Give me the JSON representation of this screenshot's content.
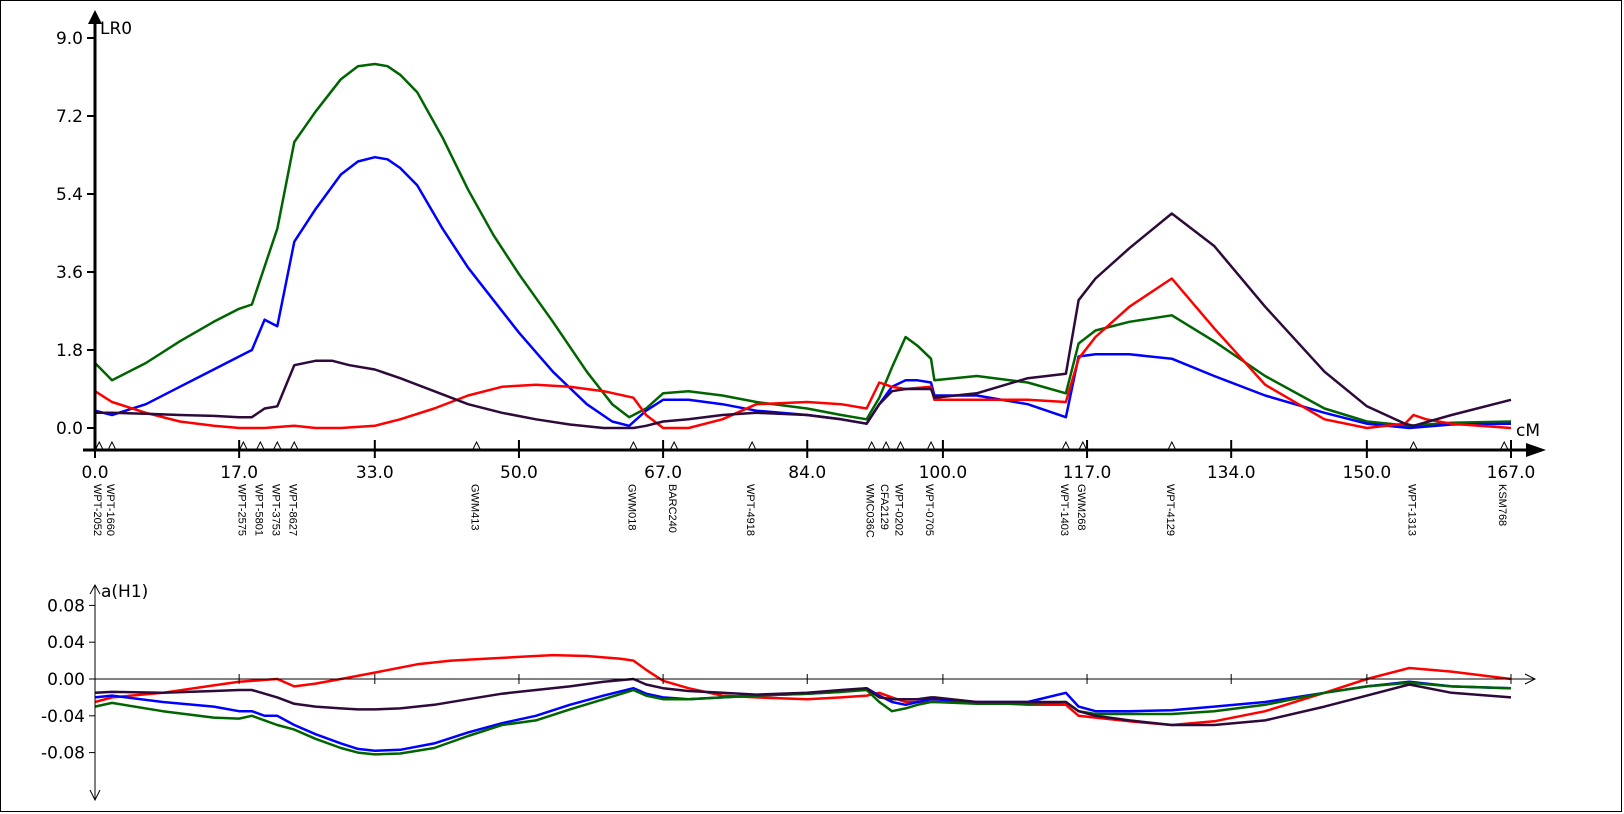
{
  "chart_data": [
    {
      "type": "line",
      "ylabel": "LR0",
      "xlabel": "cM",
      "xlim": [
        0,
        167
      ],
      "ylim": [
        0,
        9
      ],
      "x_ticks": [
        "0.0",
        "17.0",
        "33.0",
        "50.0",
        "67.0",
        "84.0",
        "100.0",
        "117.0",
        "134.0",
        "150.0",
        "167.0"
      ],
      "y_ticks": [
        "0.0",
        "1.8",
        "3.6",
        "5.4",
        "7.2",
        "9.0"
      ],
      "markers": [
        {
          "pos": 0.5,
          "name": "WPT-2052"
        },
        {
          "pos": 2,
          "name": "WPT-1660"
        },
        {
          "pos": 17.5,
          "name": "WPT-2575"
        },
        {
          "pos": 19.5,
          "name": "WPT-5801"
        },
        {
          "pos": 21.5,
          "name": "WPT-3753"
        },
        {
          "pos": 23.5,
          "name": "WPT-8627"
        },
        {
          "pos": 45,
          "name": "GWM413"
        },
        {
          "pos": 63.5,
          "name": "GWM018"
        },
        {
          "pos": 68.3,
          "name": "BARC240"
        },
        {
          "pos": 77.5,
          "name": "WPT-4918"
        },
        {
          "pos": 91.6,
          "name": "WMC036C"
        },
        {
          "pos": 93.3,
          "name": "CFA2129"
        },
        {
          "pos": 95,
          "name": "WPT-0202"
        },
        {
          "pos": 98.6,
          "name": "WPT-0705"
        },
        {
          "pos": 114.5,
          "name": "WPT-1403"
        },
        {
          "pos": 116.5,
          "name": "GWM268"
        },
        {
          "pos": 127,
          "name": "WPT-4129"
        },
        {
          "pos": 155.5,
          "name": "WPT-1313"
        },
        {
          "pos": 166.2,
          "name": "KSM768"
        }
      ],
      "series": [
        {
          "color": "#006400",
          "x": [
            0,
            2,
            6,
            10,
            14,
            17,
            18.5,
            21.5,
            23.5,
            26,
            29,
            31,
            33,
            34.5,
            36,
            38,
            41,
            44,
            47,
            50,
            54,
            58,
            61,
            63,
            65,
            67,
            70,
            74,
            78,
            84,
            88,
            91,
            92.5,
            94,
            95.6,
            97,
            98.6,
            99,
            104,
            110,
            114.5,
            116,
            118,
            122,
            127,
            132,
            138,
            145,
            150,
            155,
            160,
            167
          ],
          "y": [
            1.5,
            1.1,
            1.5,
            2.0,
            2.45,
            2.75,
            2.85,
            4.6,
            6.6,
            7.3,
            8.05,
            8.35,
            8.4,
            8.35,
            8.15,
            7.75,
            6.7,
            5.5,
            4.45,
            3.55,
            2.45,
            1.3,
            0.55,
            0.25,
            0.45,
            0.8,
            0.85,
            0.75,
            0.6,
            0.45,
            0.3,
            0.2,
            0.7,
            1.4,
            2.1,
            1.9,
            1.6,
            1.1,
            1.2,
            1.05,
            0.8,
            1.95,
            2.25,
            2.45,
            2.6,
            2.0,
            1.2,
            0.45,
            0.15,
            0.05,
            0.12,
            0.15
          ]
        },
        {
          "color": "#0000ff",
          "x": [
            0,
            2,
            6,
            10,
            14,
            17,
            18.5,
            20,
            21.5,
            23.5,
            26,
            29,
            31,
            33,
            34.5,
            36,
            38,
            41,
            44,
            47,
            50,
            54,
            58,
            61,
            63,
            65,
            67,
            70,
            74,
            78,
            84,
            88,
            91,
            92.5,
            94,
            95.6,
            97,
            98.6,
            99,
            104,
            110,
            114.5,
            116,
            118,
            122,
            127,
            132,
            138,
            145,
            150,
            155,
            160,
            167
          ],
          "y": [
            0.4,
            0.3,
            0.55,
            0.95,
            1.35,
            1.65,
            1.8,
            2.5,
            2.35,
            4.3,
            5.05,
            5.85,
            6.15,
            6.25,
            6.2,
            6.0,
            5.6,
            4.6,
            3.7,
            2.95,
            2.2,
            1.3,
            0.55,
            0.15,
            0.05,
            0.4,
            0.65,
            0.65,
            0.55,
            0.4,
            0.3,
            0.2,
            0.1,
            0.55,
            0.95,
            1.1,
            1.1,
            1.05,
            0.75,
            0.75,
            0.55,
            0.25,
            1.65,
            1.7,
            1.7,
            1.6,
            1.2,
            0.75,
            0.35,
            0.1,
            0.0,
            0.08,
            0.1
          ]
        },
        {
          "color": "#ff0000",
          "x": [
            0,
            2,
            6,
            10,
            14,
            17,
            20,
            23.5,
            26,
            29,
            33,
            36,
            40,
            44,
            48,
            52,
            56,
            60,
            63.5,
            65,
            67,
            70,
            74,
            78,
            84,
            88,
            91,
            92.5,
            94,
            95.6,
            98.6,
            99,
            104,
            110,
            114.5,
            116,
            118,
            122,
            127,
            132,
            138,
            145,
            150,
            154.5,
            155.5,
            157,
            160,
            167
          ],
          "y": [
            0.85,
            0.6,
            0.35,
            0.15,
            0.05,
            0.0,
            0.0,
            0.05,
            0.0,
            0.0,
            0.05,
            0.2,
            0.45,
            0.75,
            0.95,
            1.0,
            0.95,
            0.85,
            0.7,
            0.3,
            0.0,
            0.0,
            0.2,
            0.55,
            0.6,
            0.55,
            0.45,
            1.05,
            0.95,
            0.9,
            0.95,
            0.65,
            0.65,
            0.65,
            0.6,
            1.6,
            2.1,
            2.8,
            3.45,
            2.3,
            1.0,
            0.2,
            0.0,
            0.1,
            0.3,
            0.2,
            0.1,
            0.0
          ]
        },
        {
          "color": "#2d0a3a",
          "x": [
            0,
            2,
            6,
            10,
            14,
            17,
            18.5,
            20,
            21.5,
            23.5,
            26,
            28,
            30,
            33,
            36,
            40,
            44,
            48,
            52,
            56,
            60,
            63.5,
            65,
            67,
            70,
            74,
            78,
            84,
            88,
            91,
            92.5,
            94,
            95.6,
            98.6,
            99,
            104,
            110,
            114.5,
            116,
            118,
            122,
            127,
            132,
            138,
            145,
            150,
            154.5,
            155.5,
            160,
            167
          ],
          "y": [
            0.35,
            0.35,
            0.33,
            0.3,
            0.28,
            0.25,
            0.25,
            0.45,
            0.5,
            1.45,
            1.55,
            1.55,
            1.45,
            1.35,
            1.15,
            0.85,
            0.55,
            0.35,
            0.2,
            0.08,
            0.0,
            0.0,
            0.05,
            0.15,
            0.2,
            0.3,
            0.35,
            0.3,
            0.2,
            0.1,
            0.55,
            0.85,
            0.9,
            0.9,
            0.7,
            0.8,
            1.15,
            1.25,
            2.95,
            3.45,
            4.15,
            4.95,
            4.2,
            2.8,
            1.3,
            0.5,
            0.1,
            0.05,
            0.3,
            0.65
          ]
        }
      ]
    },
    {
      "type": "line",
      "ylabel": "a(H1)",
      "xlim": [
        0,
        167
      ],
      "ylim": [
        -0.1,
        0.1
      ],
      "y_ticks": [
        "0.08",
        "0.04",
        "0.00",
        "-0.04",
        "-0.08"
      ],
      "series": [
        {
          "color": "#ff0000",
          "x": [
            0,
            2,
            8,
            14,
            17,
            20,
            21.5,
            23.5,
            26,
            29,
            33,
            38,
            42,
            46,
            50,
            54,
            58,
            62,
            63.5,
            65,
            67,
            70,
            74,
            78,
            84,
            88,
            91,
            92.5,
            94,
            95.6,
            98.6,
            99,
            104,
            110,
            114.5,
            116,
            118,
            122,
            127,
            132,
            138,
            145,
            150,
            155,
            160,
            167
          ],
          "y": [
            -0.025,
            -0.02,
            -0.015,
            -0.007,
            -0.003,
            -0.001,
            0.0,
            -0.008,
            -0.005,
            0.0,
            0.007,
            0.016,
            0.02,
            0.022,
            0.024,
            0.026,
            0.025,
            0.022,
            0.02,
            0.01,
            -0.002,
            -0.01,
            -0.018,
            -0.02,
            -0.022,
            -0.02,
            -0.018,
            -0.015,
            -0.02,
            -0.025,
            -0.025,
            -0.025,
            -0.025,
            -0.028,
            -0.028,
            -0.04,
            -0.042,
            -0.046,
            -0.05,
            -0.046,
            -0.035,
            -0.015,
            0.0,
            0.012,
            0.008,
            0.0
          ]
        },
        {
          "color": "#0000ff",
          "x": [
            0,
            2,
            8,
            14,
            17,
            18.5,
            20,
            21.5,
            23.5,
            26,
            29,
            31,
            33,
            36,
            40,
            44,
            48,
            52,
            56,
            60,
            63.5,
            65,
            67,
            70,
            74,
            78,
            84,
            88,
            91,
            92.5,
            94,
            95.6,
            97,
            98.6,
            99,
            104,
            110,
            114.5,
            116,
            118,
            122,
            127,
            132,
            138,
            145,
            150,
            155,
            160,
            167
          ],
          "y": [
            -0.02,
            -0.018,
            -0.025,
            -0.03,
            -0.035,
            -0.035,
            -0.04,
            -0.04,
            -0.05,
            -0.06,
            -0.07,
            -0.076,
            -0.078,
            -0.077,
            -0.07,
            -0.058,
            -0.048,
            -0.04,
            -0.028,
            -0.018,
            -0.01,
            -0.016,
            -0.02,
            -0.022,
            -0.02,
            -0.018,
            -0.016,
            -0.014,
            -0.01,
            -0.018,
            -0.025,
            -0.028,
            -0.025,
            -0.022,
            -0.022,
            -0.025,
            -0.025,
            -0.015,
            -0.03,
            -0.035,
            -0.035,
            -0.034,
            -0.03,
            -0.025,
            -0.015,
            -0.008,
            -0.003,
            -0.008,
            -0.01
          ]
        },
        {
          "color": "#006400",
          "x": [
            0,
            2,
            8,
            14,
            17,
            18.5,
            20,
            21.5,
            23.5,
            26,
            29,
            31,
            33,
            36,
            40,
            44,
            48,
            52,
            56,
            60,
            63.5,
            65,
            67,
            70,
            74,
            78,
            84,
            88,
            91,
            92.5,
            94,
            95.6,
            97,
            98.6,
            99,
            104,
            110,
            114.5,
            116,
            118,
            122,
            127,
            132,
            138,
            145,
            150,
            155,
            160,
            167
          ],
          "y": [
            -0.03,
            -0.026,
            -0.035,
            -0.042,
            -0.043,
            -0.04,
            -0.045,
            -0.05,
            -0.055,
            -0.065,
            -0.075,
            -0.08,
            -0.082,
            -0.081,
            -0.075,
            -0.062,
            -0.05,
            -0.045,
            -0.033,
            -0.022,
            -0.012,
            -0.018,
            -0.022,
            -0.022,
            -0.02,
            -0.018,
            -0.016,
            -0.014,
            -0.012,
            -0.025,
            -0.035,
            -0.032,
            -0.028,
            -0.025,
            -0.025,
            -0.027,
            -0.027,
            -0.025,
            -0.035,
            -0.038,
            -0.038,
            -0.038,
            -0.035,
            -0.028,
            -0.015,
            -0.008,
            -0.004,
            -0.008,
            -0.01
          ]
        },
        {
          "color": "#2d0a3a",
          "x": [
            0,
            2,
            8,
            14,
            17,
            18.5,
            20,
            21.5,
            23.5,
            26,
            29,
            31,
            33,
            36,
            40,
            44,
            48,
            52,
            56,
            60,
            63.5,
            65,
            67,
            70,
            74,
            78,
            84,
            88,
            91,
            92.5,
            94,
            95.6,
            97,
            98.6,
            99,
            104,
            110,
            114.5,
            116,
            118,
            122,
            127,
            132,
            138,
            145,
            150,
            155,
            160,
            167
          ],
          "y": [
            -0.015,
            -0.014,
            -0.015,
            -0.013,
            -0.012,
            -0.012,
            -0.016,
            -0.02,
            -0.027,
            -0.03,
            -0.032,
            -0.033,
            -0.033,
            -0.032,
            -0.028,
            -0.022,
            -0.016,
            -0.012,
            -0.008,
            -0.003,
            0.0,
            -0.006,
            -0.01,
            -0.013,
            -0.015,
            -0.017,
            -0.015,
            -0.012,
            -0.01,
            -0.02,
            -0.022,
            -0.022,
            -0.022,
            -0.02,
            -0.02,
            -0.025,
            -0.025,
            -0.025,
            -0.035,
            -0.04,
            -0.045,
            -0.05,
            -0.05,
            -0.045,
            -0.03,
            -0.018,
            -0.006,
            -0.015,
            -0.02
          ]
        }
      ]
    }
  ]
}
